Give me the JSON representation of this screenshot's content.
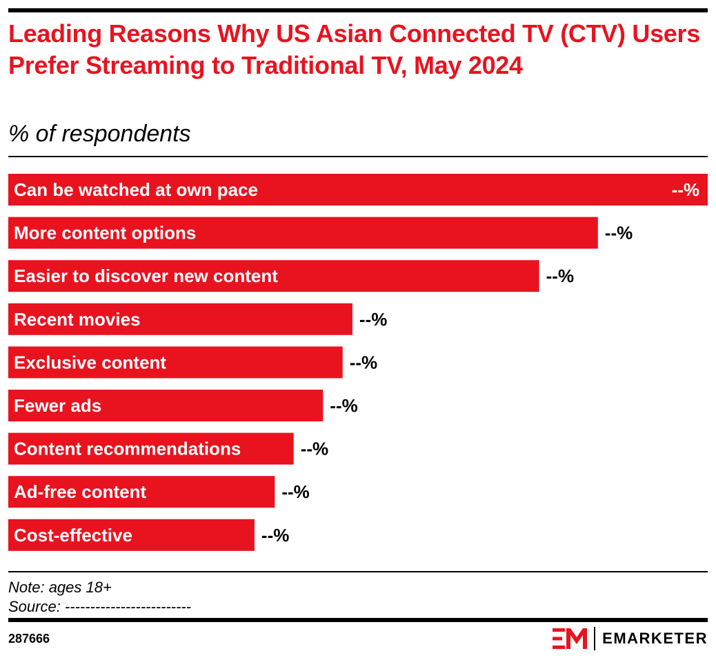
{
  "header": {
    "title": "Leading Reasons Why US Asian Connected TV (CTV) Users Prefer Streaming to Traditional TV, May 2024",
    "subtitle": "% of respondents"
  },
  "chart_data": {
    "type": "bar",
    "orientation": "horizontal",
    "title": "Leading Reasons Why US Asian Connected TV (CTV) Users Prefer Streaming to Traditional TV, May 2024",
    "subtitle": "% of respondents",
    "categories": [
      "Can be watched at own pace",
      "More content options",
      "Easier to discover new content",
      "Recent movies",
      "Exclusive content",
      "Fewer ads",
      "Content recommendations",
      "Ad-free content",
      "Cost-effective"
    ],
    "values": [
      100,
      84.3,
      75.9,
      49.2,
      47.8,
      45,
      40.8,
      38.1,
      35.2
    ],
    "value_labels": [
      "--%",
      "--%",
      "--%",
      "--%",
      "--%",
      "--%",
      "--%",
      "--%",
      "--%"
    ],
    "xlim": [
      0,
      100
    ],
    "bar_color": "#e8131f",
    "grid": false,
    "legend": "none"
  },
  "footer": {
    "note": "Note: ages 18+",
    "source": "Source: -------------------------",
    "chart_id": "287666",
    "brand": "EMARKETER"
  },
  "colors": {
    "accent": "#e8131f",
    "text": "#000000"
  }
}
